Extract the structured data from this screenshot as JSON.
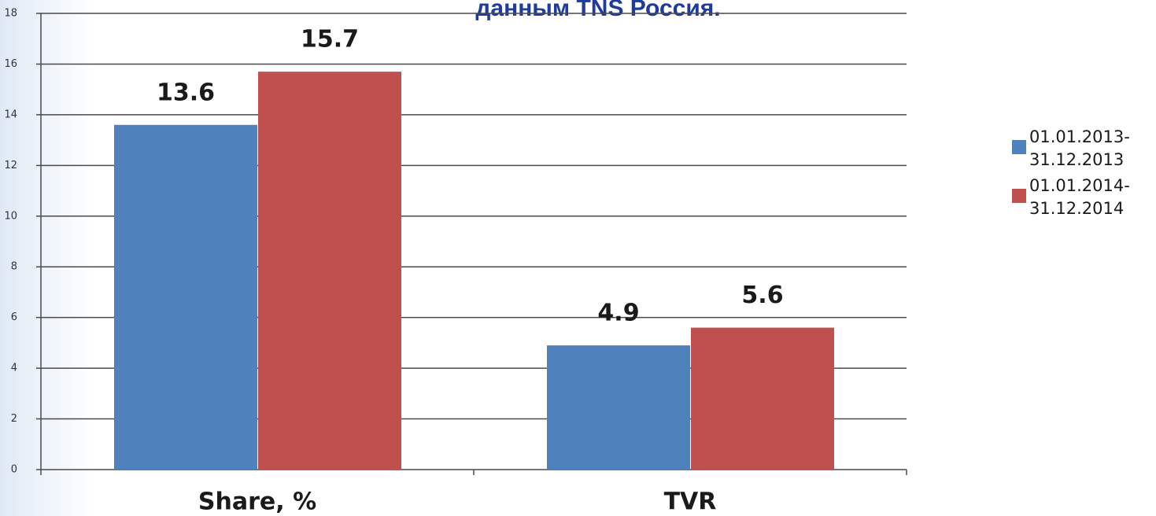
{
  "chart_data": {
    "type": "bar",
    "title": "данным TNS Россия.",
    "categories": [
      "Share, %",
      "TVR"
    ],
    "series": [
      {
        "name": "01.01.2013-31.12.2013",
        "color": "#4f81bd",
        "values": [
          13.6,
          4.9
        ]
      },
      {
        "name": "01.01.2014-31.12.2014",
        "color": "#c0504d",
        "values": [
          15.7,
          5.6
        ]
      }
    ],
    "ylim": [
      0,
      18
    ],
    "yticks": [
      0,
      2,
      4,
      6,
      8,
      10,
      12,
      14,
      16,
      18
    ],
    "grid": true,
    "legend": "right"
  }
}
